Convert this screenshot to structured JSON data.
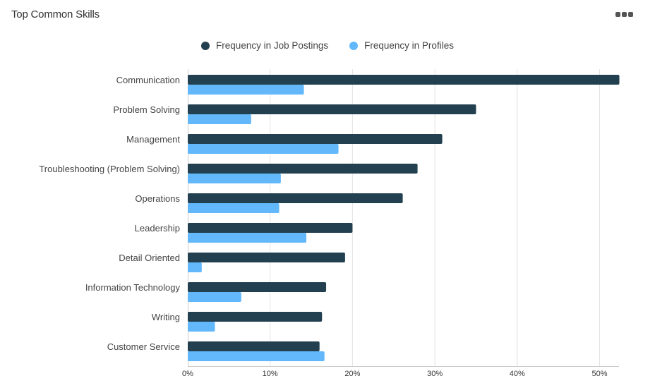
{
  "header": {
    "title": "Top Common Skills",
    "menu_icon": "more-horizontal-icon"
  },
  "chart_data": {
    "type": "bar",
    "orientation": "horizontal",
    "title": "Top Common Skills",
    "categories": [
      "Communication",
      "Problem Solving",
      "Management",
      "Troubleshooting (Problem Solving)",
      "Operations",
      "Leadership",
      "Detail Oriented",
      "Information Technology",
      "Writing",
      "Customer Service"
    ],
    "series": [
      {
        "name": "Frequency in Job Postings",
        "color": "#22404f",
        "values": [
          52.4,
          35.0,
          30.9,
          27.9,
          26.1,
          20.0,
          19.1,
          16.8,
          16.3,
          16.0
        ]
      },
      {
        "name": "Frequency in Profiles",
        "color": "#62b8fb",
        "values": [
          14.1,
          7.7,
          18.3,
          11.3,
          11.1,
          14.4,
          1.7,
          6.5,
          3.3,
          16.6
        ]
      }
    ],
    "x_ticks": [
      "0%",
      "10%",
      "20%",
      "30%",
      "40%",
      "50%"
    ],
    "xlim": [
      0,
      52.4
    ],
    "grid": true,
    "legend_position": "top-center"
  }
}
